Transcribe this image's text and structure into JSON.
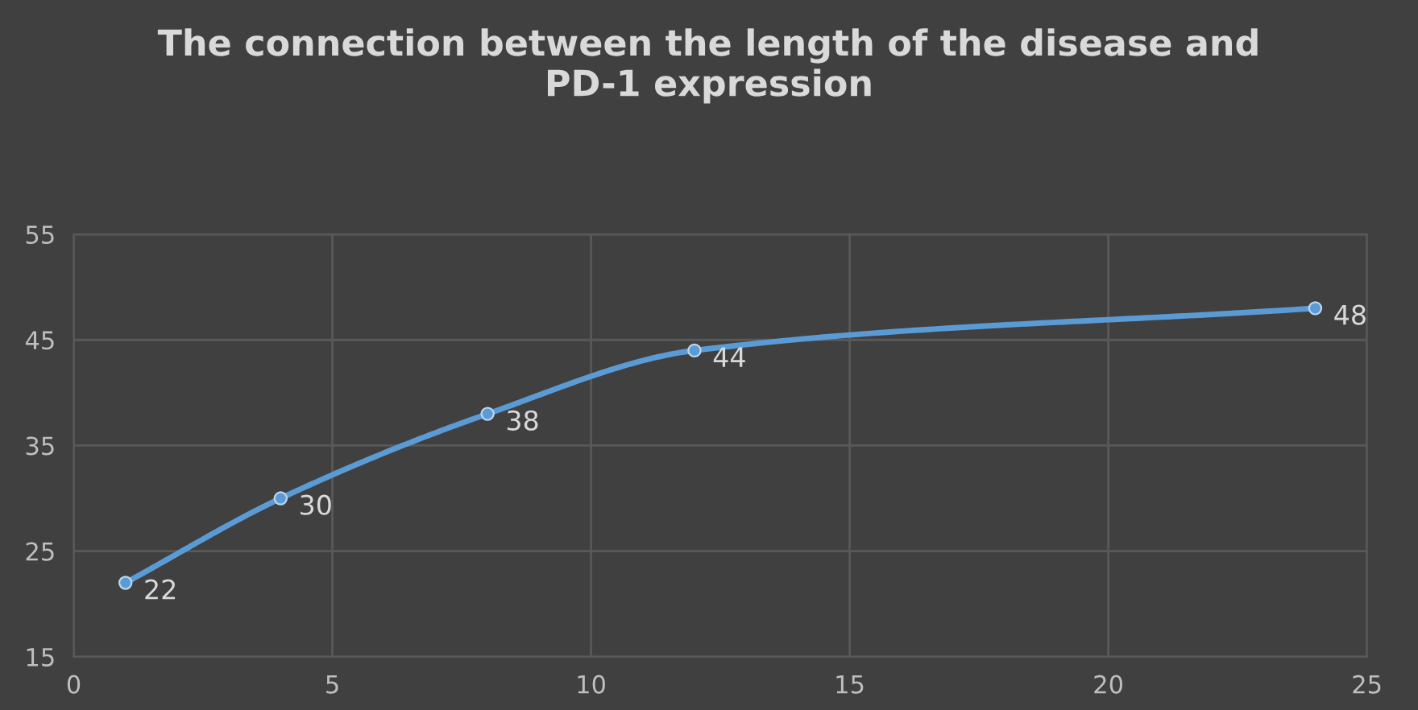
{
  "chart_data": {
    "type": "line",
    "title": "The connection between the length of the disease and PD-1 expression",
    "x": [
      1,
      4,
      8,
      12,
      24
    ],
    "series": [
      {
        "color": "#5b9bd5",
        "values": [
          22,
          30,
          38,
          44,
          48
        ]
      }
    ],
    "xlim": [
      0,
      25
    ],
    "xticks": [
      0,
      5,
      10,
      15,
      20,
      25
    ],
    "ylim": [
      15,
      55
    ],
    "yticks": [
      15,
      25,
      35,
      45,
      55
    ],
    "grid": true,
    "marker": "circle",
    "data_labels": true,
    "line_style": "solid"
  }
}
